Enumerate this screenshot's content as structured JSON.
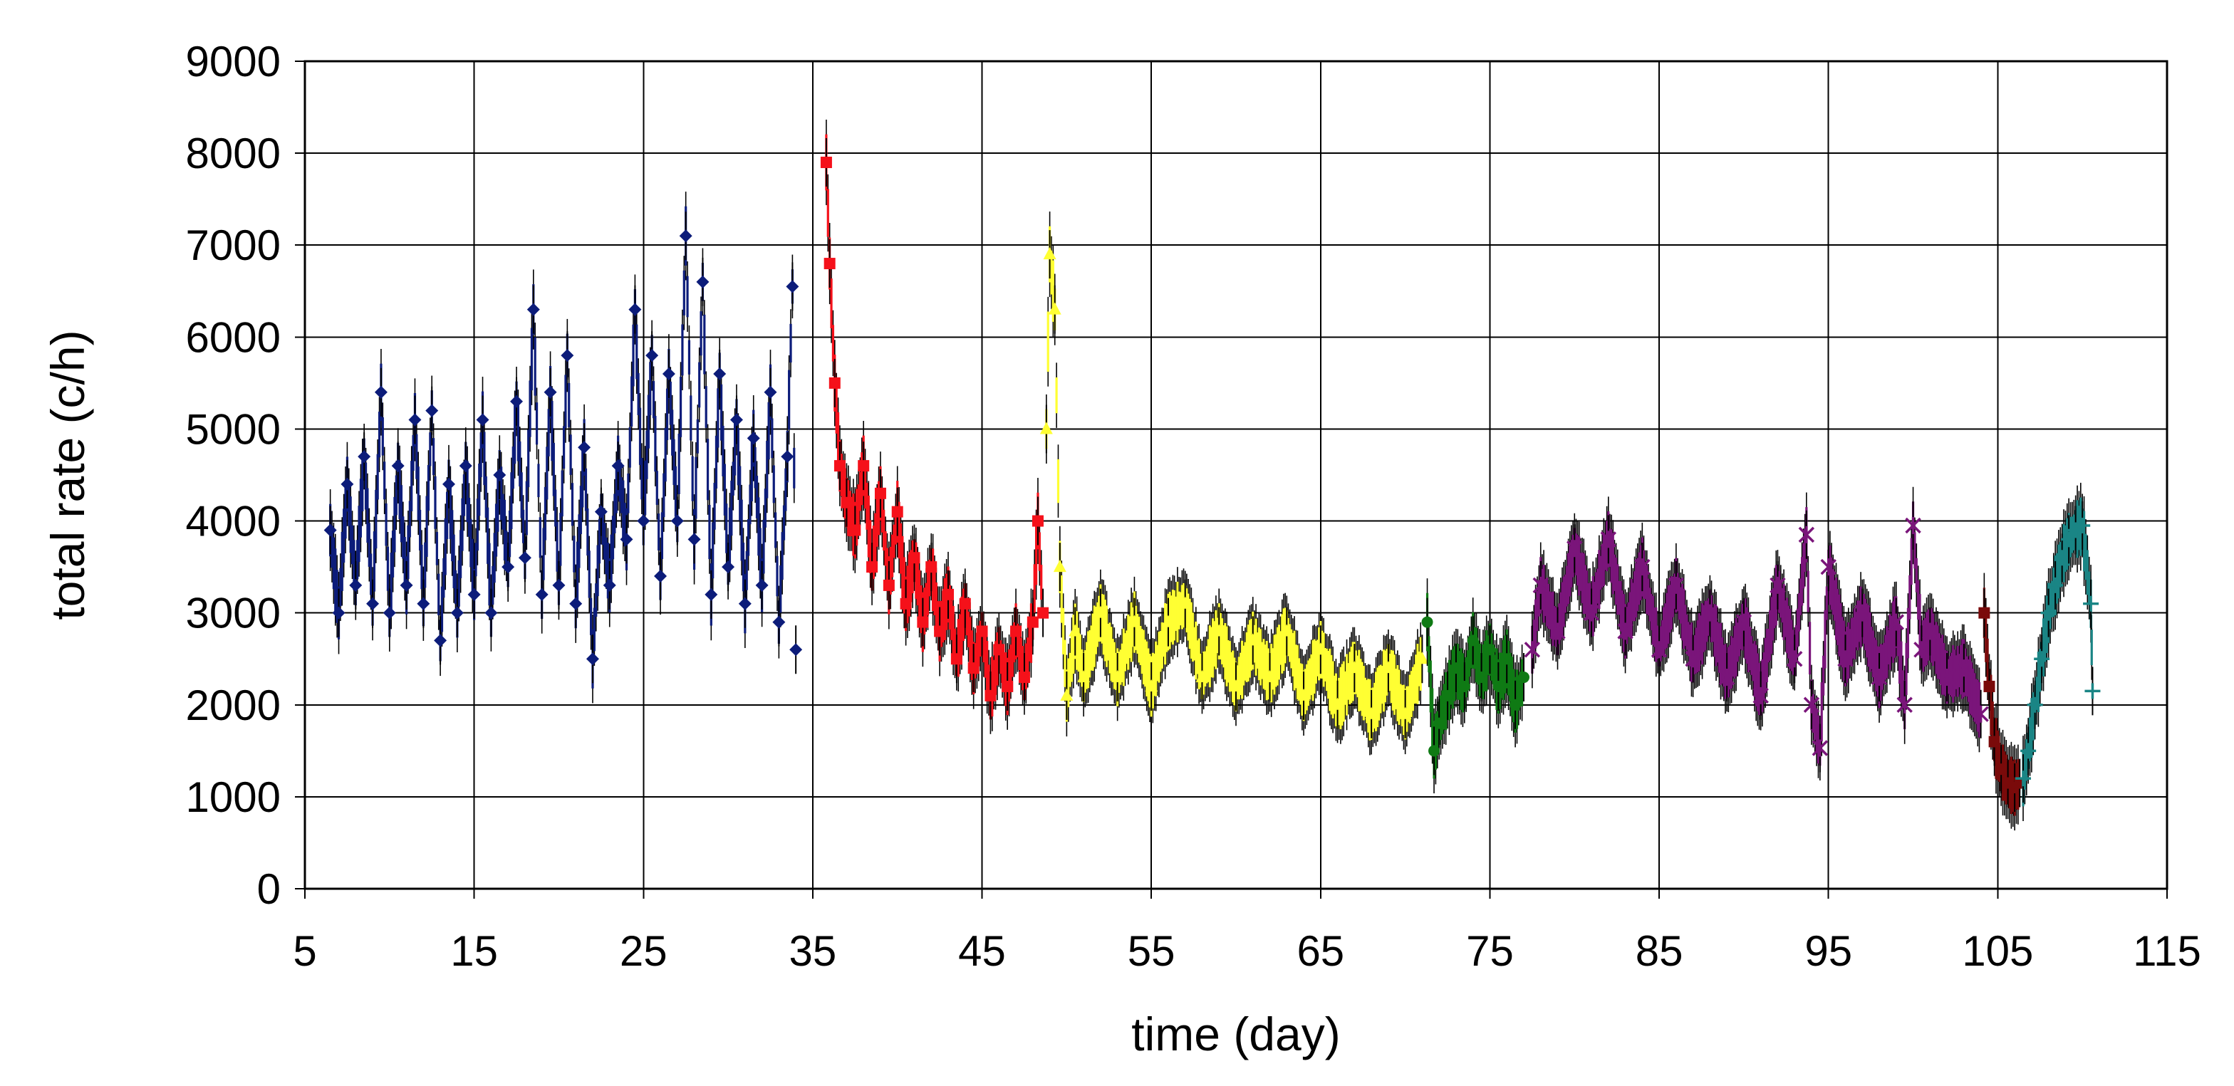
{
  "chart_data": {
    "type": "scatter",
    "xlabel": "time (day)",
    "ylabel": "total rate (c/h)",
    "xlim": [
      5,
      115
    ],
    "ylim": [
      0,
      9000
    ],
    "x_ticks": [
      "5",
      "15",
      "25",
      "35",
      "45",
      "55",
      "65",
      "75",
      "85",
      "95",
      "105",
      "115"
    ],
    "y_ticks": [
      "0",
      "1000",
      "2000",
      "3000",
      "4000",
      "5000",
      "6000",
      "7000",
      "8000",
      "9000"
    ],
    "grid": true,
    "legend": "none",
    "error_bars": true,
    "series": [
      {
        "color": "#0c1c7a",
        "marker": "diamond",
        "points": [
          [
            6.5,
            3900
          ],
          [
            7,
            3000
          ],
          [
            7.5,
            4400
          ],
          [
            8,
            3300
          ],
          [
            8.5,
            4700
          ],
          [
            9,
            3100
          ],
          [
            9.5,
            5400
          ],
          [
            10,
            3000
          ],
          [
            10.5,
            4600
          ],
          [
            11,
            3300
          ],
          [
            11.5,
            5100
          ],
          [
            12,
            3100
          ],
          [
            12.5,
            5200
          ],
          [
            13,
            2700
          ],
          [
            13.5,
            4400
          ],
          [
            14,
            3000
          ],
          [
            14.5,
            4600
          ],
          [
            15,
            3200
          ],
          [
            15.5,
            5100
          ],
          [
            16,
            3000
          ],
          [
            16.5,
            4500
          ],
          [
            17,
            3500
          ],
          [
            17.5,
            5300
          ],
          [
            18,
            3600
          ],
          [
            18.5,
            6300
          ],
          [
            19,
            3200
          ],
          [
            19.5,
            5400
          ],
          [
            20,
            3300
          ],
          [
            20.5,
            5800
          ],
          [
            21,
            3100
          ],
          [
            21.5,
            4800
          ],
          [
            22,
            2500
          ],
          [
            22.5,
            4100
          ],
          [
            23,
            3300
          ],
          [
            23.5,
            4600
          ],
          [
            24,
            3800
          ],
          [
            24.5,
            6300
          ],
          [
            25,
            4000
          ],
          [
            25.5,
            5800
          ],
          [
            26,
            3400
          ],
          [
            26.5,
            5600
          ],
          [
            27,
            4000
          ],
          [
            27.5,
            7100
          ],
          [
            28,
            3800
          ],
          [
            28.5,
            6600
          ],
          [
            29,
            3200
          ],
          [
            29.5,
            5600
          ],
          [
            30,
            3500
          ],
          [
            30.5,
            5100
          ],
          [
            31,
            3100
          ],
          [
            31.5,
            4900
          ],
          [
            32,
            3300
          ],
          [
            32.5,
            5400
          ],
          [
            33,
            2900
          ],
          [
            33.5,
            4700
          ],
          [
            33.8,
            6550
          ],
          [
            34,
            2600
          ]
        ]
      },
      {
        "color": "#f5111a",
        "marker": "square",
        "points": [
          [
            35.8,
            7900
          ],
          [
            36,
            6800
          ],
          [
            36.3,
            5500
          ],
          [
            36.6,
            4600
          ],
          [
            37,
            4200
          ],
          [
            37.5,
            3900
          ],
          [
            38,
            4600
          ],
          [
            38.5,
            3500
          ],
          [
            39,
            4300
          ],
          [
            39.5,
            3300
          ],
          [
            40,
            4100
          ],
          [
            40.5,
            3100
          ],
          [
            41,
            3600
          ],
          [
            41.5,
            2900
          ],
          [
            42,
            3500
          ],
          [
            42.5,
            2800
          ],
          [
            43,
            3200
          ],
          [
            43.5,
            2500
          ],
          [
            44,
            3100
          ],
          [
            44.5,
            2400
          ],
          [
            45,
            2800
          ],
          [
            45.5,
            2100
          ],
          [
            46,
            2600
          ],
          [
            46.5,
            2200
          ],
          [
            47,
            2800
          ],
          [
            47.5,
            2300
          ],
          [
            48,
            2900
          ],
          [
            48.3,
            4000
          ],
          [
            48.6,
            3000
          ]
        ]
      },
      {
        "color": "#ffff33",
        "marker": "triangle",
        "points": [
          [
            48.8,
            5000
          ],
          [
            49,
            6900
          ],
          [
            49.3,
            6300
          ],
          [
            49.6,
            3500
          ],
          [
            50,
            2100
          ],
          [
            50.5,
            2800
          ],
          [
            51,
            2300
          ],
          [
            52,
            3000
          ],
          [
            53,
            2300
          ],
          [
            54,
            2900
          ],
          [
            55,
            2200
          ],
          [
            56,
            2900
          ],
          [
            57,
            3100
          ],
          [
            58,
            2300
          ],
          [
            59,
            2800
          ],
          [
            60,
            2200
          ],
          [
            61,
            2700
          ],
          [
            62,
            2300
          ],
          [
            63,
            2800
          ],
          [
            64,
            2100
          ],
          [
            65,
            2600
          ],
          [
            66,
            2000
          ],
          [
            67,
            2400
          ],
          [
            68,
            1900
          ],
          [
            69,
            2400
          ],
          [
            70,
            1900
          ],
          [
            71,
            2500
          ]
        ]
      },
      {
        "color": "#0f7a14",
        "marker": "circle",
        "points": [
          [
            71.3,
            2900
          ],
          [
            71.7,
            1500
          ],
          [
            72,
            1800
          ],
          [
            72.5,
            2100
          ],
          [
            73,
            2400
          ],
          [
            73.5,
            2200
          ],
          [
            74,
            2700
          ],
          [
            74.5,
            2300
          ],
          [
            75,
            2600
          ],
          [
            75.5,
            2200
          ],
          [
            76,
            2500
          ],
          [
            76.5,
            2000
          ],
          [
            77,
            2300
          ]
        ]
      },
      {
        "color": "#7a157a",
        "marker": "asterisk",
        "points": [
          [
            77.5,
            2600
          ],
          [
            78,
            3300
          ],
          [
            79,
            2800
          ],
          [
            80,
            3700
          ],
          [
            81,
            3000
          ],
          [
            82,
            3800
          ],
          [
            83,
            2800
          ],
          [
            84,
            3500
          ],
          [
            85,
            2600
          ],
          [
            86,
            3300
          ],
          [
            87,
            2500
          ],
          [
            88,
            3000
          ],
          [
            89,
            2300
          ],
          [
            90,
            2900
          ],
          [
            91,
            2100
          ],
          [
            92,
            3300
          ],
          [
            93,
            2500
          ],
          [
            93.7,
            3850
          ],
          [
            94,
            2000
          ],
          [
            94.5,
            1530
          ],
          [
            95,
            3500
          ],
          [
            96,
            2500
          ],
          [
            97,
            3000
          ],
          [
            98,
            2300
          ],
          [
            99,
            2900
          ],
          [
            99.5,
            2000
          ],
          [
            100,
            3950
          ],
          [
            100.5,
            2600
          ],
          [
            101,
            2800
          ],
          [
            102,
            2300
          ],
          [
            103,
            2400
          ],
          [
            104,
            1900
          ]
        ]
      },
      {
        "color": "#7a0a0a",
        "marker": "square",
        "points": [
          [
            104.2,
            3000
          ],
          [
            104.5,
            2200
          ],
          [
            104.8,
            1600
          ],
          [
            105.2,
            1300
          ],
          [
            105.6,
            1150
          ],
          [
            106,
            1100
          ],
          [
            106.3,
            1150
          ]
        ]
      },
      {
        "color": "#1a8585",
        "marker": "plus",
        "points": [
          [
            106.5,
            1200
          ],
          [
            106.8,
            1500
          ],
          [
            107.2,
            2000
          ],
          [
            107.6,
            2500
          ],
          [
            108,
            3000
          ],
          [
            108.4,
            3300
          ],
          [
            108.8,
            3600
          ],
          [
            109.2,
            3800
          ],
          [
            109.6,
            3900
          ],
          [
            110,
            3950
          ],
          [
            110.5,
            3100
          ],
          [
            110.6,
            2150
          ]
        ]
      }
    ]
  }
}
